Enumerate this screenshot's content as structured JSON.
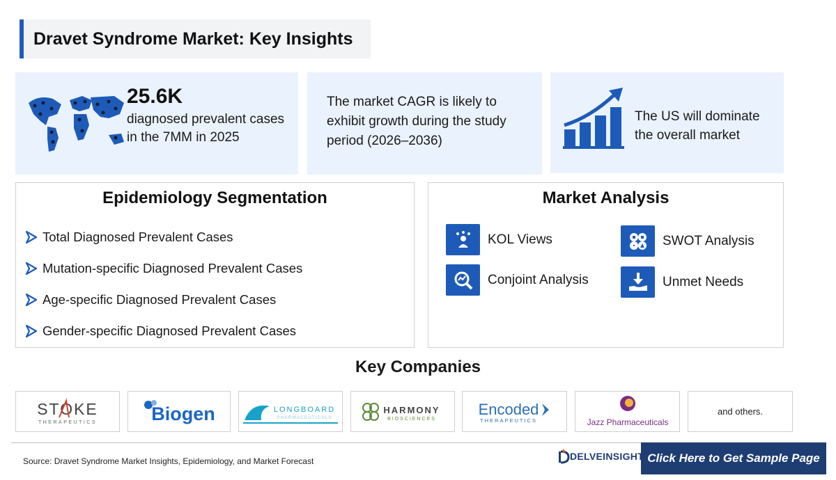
{
  "header": {
    "title": "Dravet Syndrome Market: Key Insights"
  },
  "insights": {
    "prevalence": {
      "value": "25.6K",
      "text": "diagnosed prevalent cases in the 7MM in 2025"
    },
    "cagr": {
      "text": "The market CAGR is likely to exhibit growth during the study period (2026–2036)"
    },
    "us": {
      "text": "The US will dominate the overall market"
    }
  },
  "epidemiology": {
    "title": "Epidemiology Segmentation",
    "items": [
      "Total Diagnosed Prevalent Cases",
      "Mutation-specific Diagnosed Prevalent Cases",
      "Age-specific Diagnosed Prevalent Cases",
      "Gender-specific Diagnosed Prevalent Cases"
    ]
  },
  "market_analysis": {
    "title": "Market Analysis",
    "items": [
      {
        "label": "KOL Views",
        "icon": "kol-icon"
      },
      {
        "label": "SWOT Analysis",
        "icon": "swot-icon"
      },
      {
        "label": "Conjoint Analysis",
        "icon": "conjoint-icon"
      },
      {
        "label": "Unmet Needs",
        "icon": "unmet-needs-icon"
      }
    ]
  },
  "companies": {
    "title": "Key Companies",
    "logos": [
      {
        "name": "STOKE",
        "sub": "THERAPEUTICS"
      },
      {
        "name": "Biogen"
      },
      {
        "name": "LONGBOARD",
        "sub": "PHARMACEUTICALS"
      },
      {
        "name": "HARMONY",
        "sub": "BIOSCIENCES"
      },
      {
        "name": "Encoded",
        "sub": "THERAPEUTICS"
      },
      {
        "name": "Jazz Pharmaceuticals"
      }
    ],
    "others": "and others."
  },
  "footer": {
    "source": "Source: Dravet Syndrome Market Insights, Epidemiology, and Market Forecast",
    "brand": "DELVEINSIGHT",
    "cta": "Click Here to Get Sample Page"
  },
  "colors": {
    "accent": "#1e5bb8",
    "card_bg": "#eaf2fd",
    "brand_dark": "#1e3d73"
  }
}
